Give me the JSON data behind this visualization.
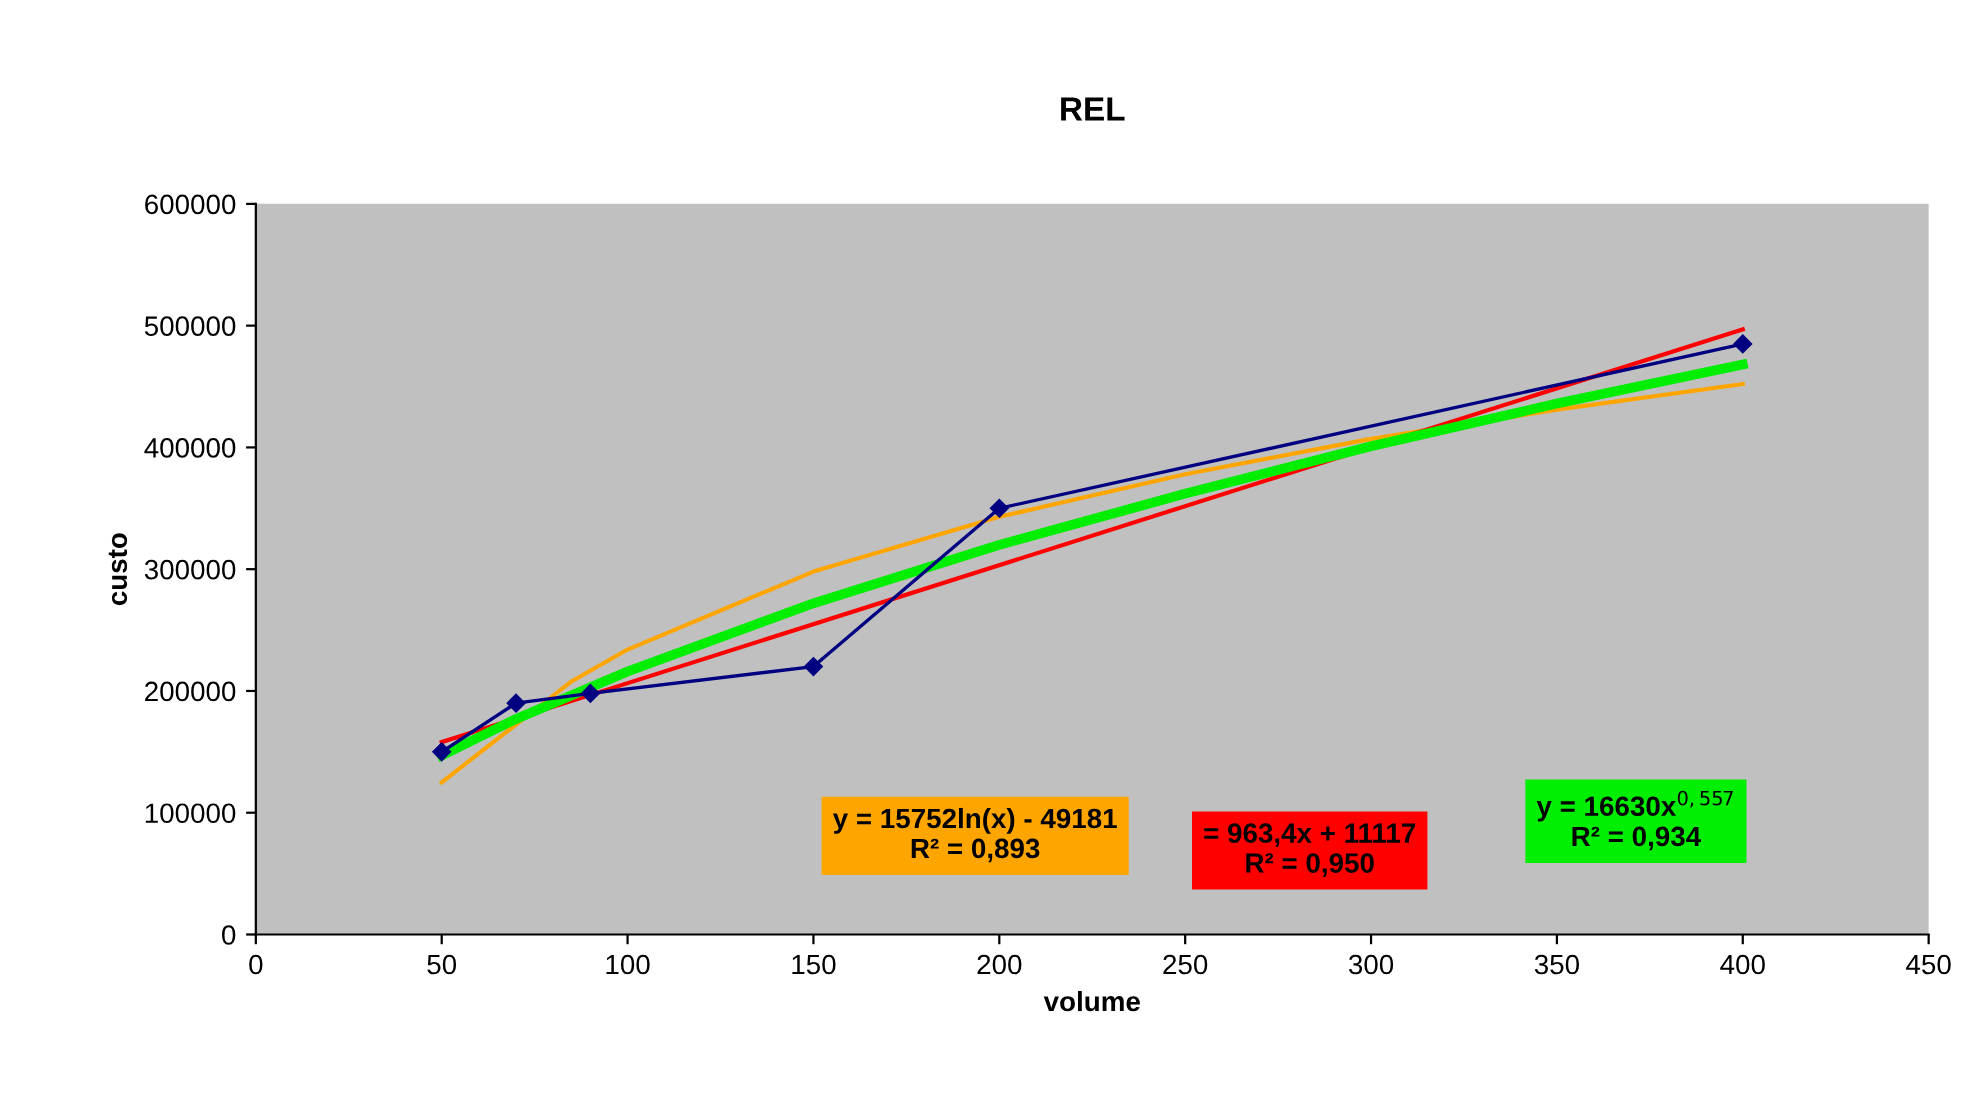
{
  "chart_data": {
    "type": "line",
    "title": "REL",
    "xlabel": "volume",
    "ylabel": "custo",
    "xlim": [
      0,
      450
    ],
    "xticks": [
      0,
      50,
      100,
      150,
      200,
      250,
      300,
      350,
      400,
      450
    ],
    "ylim": [
      0,
      600000
    ],
    "yticks": [
      0,
      100000,
      200000,
      300000,
      400000,
      500000,
      600000
    ],
    "grid": false,
    "legend": false,
    "series": [
      {
        "color": "#000080",
        "marker": "diamond",
        "x": [
          50,
          70,
          90,
          150,
          200,
          400
        ],
        "values": [
          150000,
          190000,
          198000,
          220000,
          350000,
          485000
        ]
      },
      {
        "color": "#ffa500",
        "marker": "none",
        "x": [
          50,
          85,
          100,
          150,
          200,
          250,
          300,
          350,
          400
        ],
        "values": [
          125000,
          208000,
          234000,
          298000,
          343000,
          378000,
          407000,
          431000,
          452000
        ]
      },
      {
        "color": "#ff0000",
        "marker": "none",
        "x": [
          50,
          400
        ],
        "values": [
          158000,
          497000
        ]
      },
      {
        "color": "#00ee00",
        "marker": "none",
        "x": [
          50,
          70,
          100,
          150,
          200,
          250,
          300,
          350,
          400
        ],
        "values": [
          147000,
          177000,
          216000,
          272000,
          320000,
          362000,
          401000,
          436000,
          468000
        ]
      }
    ],
    "annotations": [
      "y = 15752ln(x) - 49181\nR² = 0,893",
      "= 963,4x + 11117\nR² = 0,950",
      "y = 16630x$^{0,557}$\nR² = 0,934"
    ]
  }
}
